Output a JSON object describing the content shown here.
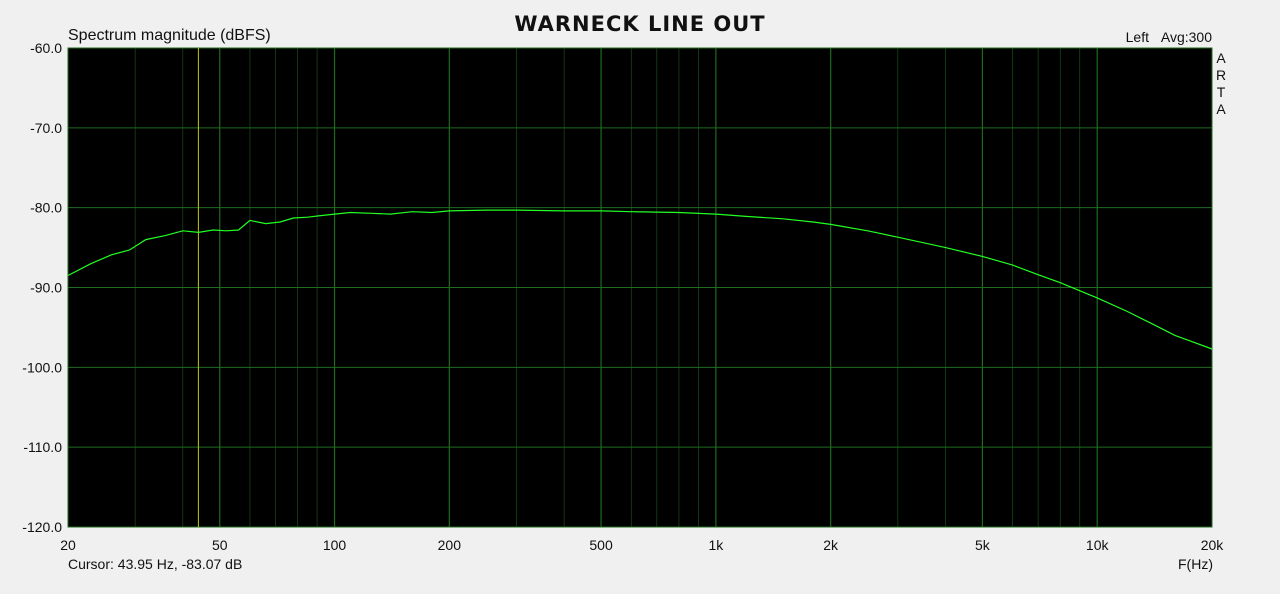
{
  "title": "WARNECK LINE OUT",
  "status": {
    "channel": "Left",
    "averaging": "Avg:300",
    "cursor": "Cursor: 43.95 Hz, -83.07 dB"
  },
  "brand": [
    "A",
    "R",
    "T",
    "A"
  ],
  "colors": {
    "background": "#000000",
    "trace": "#22ff22",
    "grid": "#1f6b1f",
    "cursor_line": "#c8c800",
    "frame": "#f0f0f0"
  },
  "chart_data": {
    "type": "line",
    "title": "WARNECK LINE OUT",
    "ylabel": "Spectrum magnitude (dBFS)",
    "xlabel": "F(Hz)",
    "x_scale": "log",
    "xlim": [
      20,
      20000
    ],
    "ylim": [
      -120,
      -60
    ],
    "grid": true,
    "x_tick_values": [
      20,
      50,
      100,
      200,
      500,
      1000,
      2000,
      5000,
      10000,
      20000
    ],
    "x_tick_labels": [
      "20",
      "50",
      "100",
      "200",
      "500",
      "1k",
      "2k",
      "5k",
      "10k",
      "20k"
    ],
    "y_tick_values": [
      -60,
      -70,
      -80,
      -90,
      -100,
      -110,
      -120
    ],
    "y_tick_labels": [
      "-60.0",
      "-70.0",
      "-80.0",
      "-90.0",
      "-100.0",
      "-110.0",
      "-120.0"
    ],
    "cursor": {
      "x": 43.95,
      "y": -83.07
    },
    "series": [
      {
        "x": [
          20,
          23,
          26,
          29,
          32,
          36,
          40,
          44,
          48,
          52,
          56,
          60,
          66,
          72,
          78,
          85,
          92,
          100,
          110,
          125,
          140,
          160,
          180,
          200,
          250,
          300,
          400,
          500,
          600,
          800,
          1000,
          1200,
          1500,
          1800,
          2000,
          2500,
          3000,
          4000,
          5000,
          6000,
          7000,
          8000,
          10000,
          12000,
          14000,
          16000,
          18000,
          20000
        ],
        "y": [
          -88.5,
          -87.0,
          -85.9,
          -85.3,
          -84.0,
          -83.5,
          -82.9,
          -83.1,
          -82.8,
          -82.9,
          -82.8,
          -81.6,
          -82.0,
          -81.8,
          -81.3,
          -81.2,
          -81.0,
          -80.8,
          -80.6,
          -80.7,
          -80.8,
          -80.5,
          -80.6,
          -80.4,
          -80.3,
          -80.3,
          -80.4,
          -80.4,
          -80.5,
          -80.6,
          -80.8,
          -81.1,
          -81.4,
          -81.8,
          -82.1,
          -82.9,
          -83.7,
          -85.0,
          -86.1,
          -87.2,
          -88.4,
          -89.4,
          -91.3,
          -93.0,
          -94.6,
          -96.0,
          -96.9,
          -97.7
        ]
      }
    ]
  }
}
